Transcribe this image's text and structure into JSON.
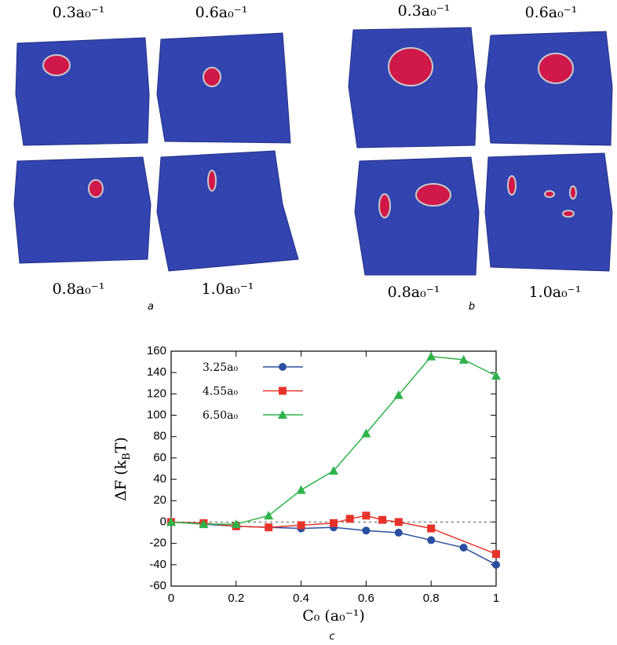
{
  "figure": {
    "panel_a": {
      "label": "a",
      "captions": [
        "0.3a₀⁻¹",
        "0.6a₀⁻¹",
        "0.8a₀⁻¹",
        "1.0a₀⁻¹"
      ]
    },
    "panel_b": {
      "label": "b",
      "captions": [
        "0.3a₀⁻¹",
        "0.6a₀⁻¹",
        "0.8a₀⁻¹",
        "1.0a₀⁻¹"
      ]
    },
    "panel_c": {
      "label": "c"
    }
  },
  "chart_data": {
    "type": "line",
    "xlabel": "C₀ (a₀⁻¹)",
    "ylabel": [
      "ΔF (k",
      "B",
      "T)"
    ],
    "xlim": [
      0,
      1
    ],
    "xticks": [
      0,
      0.2,
      0.4,
      0.6,
      0.8,
      1
    ],
    "ylim": [
      -60,
      160
    ],
    "yticks": [
      -60,
      -40,
      -20,
      0,
      20,
      40,
      60,
      80,
      100,
      120,
      140,
      160
    ],
    "legend": "upper left",
    "series": [
      {
        "name": "3.25a₀",
        "color": "#2a4ea0",
        "marker": "circle",
        "x": [
          0,
          0.1,
          0.2,
          0.3,
          0.4,
          0.5,
          0.6,
          0.7,
          0.8,
          0.9,
          1
        ],
        "values": [
          0,
          -2,
          -4,
          -5,
          -6,
          -5,
          -8,
          -10,
          -17,
          -24,
          -40
        ]
      },
      {
        "name": "4.55a₀",
        "color": "#e8332a",
        "marker": "square",
        "x": [
          0,
          0.1,
          0.2,
          0.3,
          0.4,
          0.5,
          0.55,
          0.6,
          0.65,
          0.7,
          0.8,
          1
        ],
        "values": [
          0,
          -1,
          -4,
          -5,
          -3,
          -1,
          3,
          6,
          2,
          0,
          -6,
          -30
        ]
      },
      {
        "name": "6.50a₀",
        "color": "#2db34a",
        "marker": "triangle",
        "x": [
          0,
          0.1,
          0.2,
          0.3,
          0.4,
          0.5,
          0.6,
          0.7,
          0.8,
          0.9,
          1
        ],
        "values": [
          0,
          -2,
          -2,
          6,
          30,
          48,
          83,
          119,
          155,
          152,
          137
        ]
      }
    ]
  }
}
